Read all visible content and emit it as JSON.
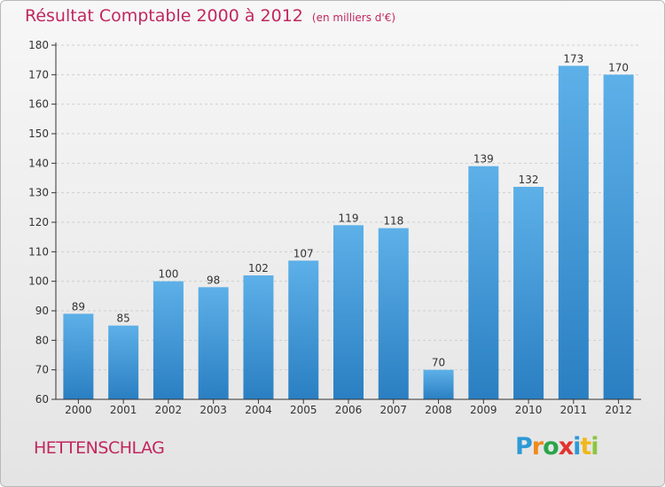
{
  "title": "Résultat Comptable 2000 à 2012",
  "subtitle": "(en milliers d'€)",
  "commune": "HETTENSCHLAG",
  "logo": {
    "p": "P",
    "r": "r",
    "o": "o",
    "x": "x",
    "i": "i",
    "t": "t",
    "i2": "i"
  },
  "colors": {
    "title": "#c1275e",
    "bar_light": "#5db0e8",
    "bar_dark": "#2a7fc2",
    "axis": "#333333"
  },
  "chart_data": {
    "type": "bar",
    "title": "Résultat Comptable 2000 à 2012",
    "ylabel": "en milliers d'€",
    "xlabel": "",
    "categories": [
      "2000",
      "2001",
      "2002",
      "2003",
      "2004",
      "2005",
      "2006",
      "2007",
      "2008",
      "2009",
      "2010",
      "2011",
      "2012"
    ],
    "values": [
      89,
      85,
      100,
      98,
      102,
      107,
      119,
      118,
      70,
      139,
      132,
      173,
      170
    ],
    "ylim": [
      60,
      180
    ],
    "yticks": [
      60,
      70,
      80,
      90,
      100,
      110,
      120,
      130,
      140,
      150,
      160,
      170,
      180
    ],
    "grid": true
  }
}
